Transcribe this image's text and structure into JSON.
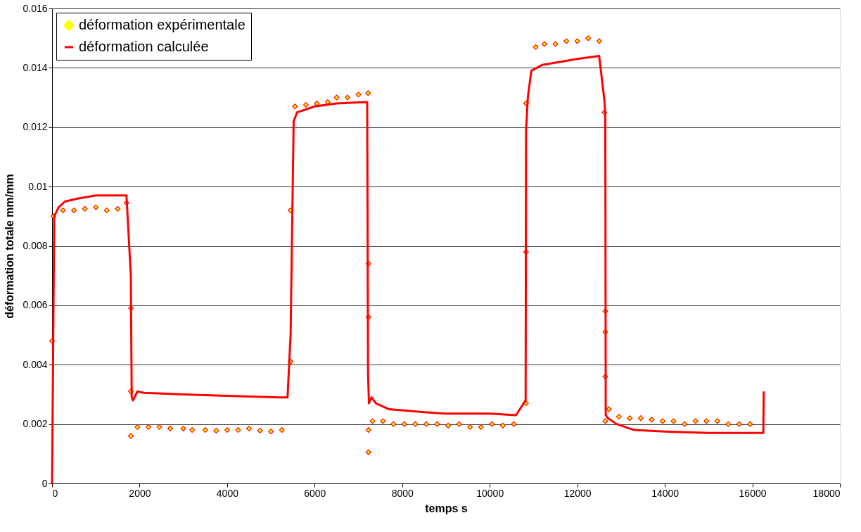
{
  "chart_data": {
    "type": "line",
    "xlabel": "temps s",
    "ylabel": "déformation totale mm/mm",
    "xlim": [
      0,
      18000
    ],
    "xticks": [
      0,
      2000,
      4000,
      6000,
      8000,
      10000,
      12000,
      14000,
      16000,
      18000
    ],
    "ylim": [
      0,
      0.016
    ],
    "yticks": [
      0,
      0.002,
      0.004,
      0.006,
      0.008,
      0.01,
      0.012,
      0.014,
      0.016
    ],
    "grid": "y",
    "legend": "top left",
    "series": [
      {
        "name": "déformation expérimentale",
        "type": "scatter",
        "marker": "diamond",
        "color": "#ffff00",
        "x": [
          0,
          30,
          250,
          500,
          750,
          1000,
          1250,
          1500,
          1700,
          1800,
          1800,
          1800,
          1950,
          2200,
          2450,
          2700,
          3000,
          3200,
          3500,
          3750,
          4000,
          4250,
          4500,
          4750,
          5000,
          5250,
          5450,
          5450,
          5550,
          5800,
          6050,
          6300,
          6500,
          6750,
          7000,
          7220,
          7230,
          7230,
          7230,
          7230,
          7320,
          7560,
          7800,
          8050,
          8300,
          8550,
          8800,
          9050,
          9300,
          9550,
          9800,
          10050,
          10300,
          10550,
          10830,
          10830,
          10830,
          11050,
          11250,
          11500,
          11750,
          12000,
          12250,
          12500,
          12620,
          12640,
          12640,
          12640,
          12640,
          12720,
          12950,
          13200,
          13450,
          13700,
          13950,
          14200,
          14450,
          14700,
          14950,
          15200,
          15450,
          15700,
          15950
        ],
        "values": [
          0.0048,
          0.009,
          0.0092,
          0.0092,
          0.00925,
          0.0093,
          0.0092,
          0.00925,
          0.00945,
          0.0059,
          0.0031,
          0.0016,
          0.0019,
          0.0019,
          0.0019,
          0.00185,
          0.00185,
          0.0018,
          0.0018,
          0.00178,
          0.0018,
          0.0018,
          0.00185,
          0.00178,
          0.00175,
          0.0018,
          0.0041,
          0.0092,
          0.0127,
          0.01275,
          0.0128,
          0.01285,
          0.013,
          0.013,
          0.0131,
          0.01315,
          0.0074,
          0.0056,
          0.0018,
          0.00105,
          0.0021,
          0.0021,
          0.002,
          0.002,
          0.002,
          0.002,
          0.002,
          0.00195,
          0.002,
          0.0019,
          0.0019,
          0.002,
          0.00195,
          0.002,
          0.0027,
          0.0078,
          0.0128,
          0.0147,
          0.0148,
          0.0148,
          0.0149,
          0.0149,
          0.015,
          0.0149,
          0.0125,
          0.0058,
          0.0051,
          0.0036,
          0.0021,
          0.0025,
          0.00225,
          0.0022,
          0.0022,
          0.00215,
          0.0021,
          0.0021,
          0.002,
          0.0021,
          0.0021,
          0.0021,
          0.002,
          0.002,
          0.002
        ]
      },
      {
        "name": "déformation calculée",
        "line_style": "solid",
        "marker": "none",
        "color": "#ff0000",
        "x": [
          0,
          50,
          150,
          300,
          600,
          1000,
          1700,
          1800,
          1820,
          1850,
          1950,
          2100,
          3000,
          4000,
          5200,
          5380,
          5450,
          5520,
          5600,
          6000,
          6500,
          7200,
          7220,
          7240,
          7300,
          7400,
          7700,
          8500,
          9000,
          10000,
          10600,
          10820,
          10830,
          10870,
          10950,
          11200,
          11600,
          12000,
          12500,
          12620,
          12640,
          12650,
          12700,
          12900,
          13300,
          14000,
          15000,
          16250,
          16260
        ],
        "values": [
          0,
          0.009,
          0.0093,
          0.0095,
          0.0096,
          0.0097,
          0.0097,
          0.007,
          0.0029,
          0.0028,
          0.0031,
          0.00305,
          0.003,
          0.00295,
          0.0029,
          0.0029,
          0.005,
          0.0122,
          0.0125,
          0.0127,
          0.0128,
          0.01285,
          0.0037,
          0.0027,
          0.0029,
          0.0027,
          0.0025,
          0.0024,
          0.00235,
          0.00235,
          0.0023,
          0.0028,
          0.0119,
          0.013,
          0.0139,
          0.0141,
          0.0142,
          0.0143,
          0.0144,
          0.0129,
          0.0124,
          0.0023,
          0.0022,
          0.002,
          0.0018,
          0.00175,
          0.0017,
          0.0017,
          0.0031
        ]
      }
    ]
  }
}
